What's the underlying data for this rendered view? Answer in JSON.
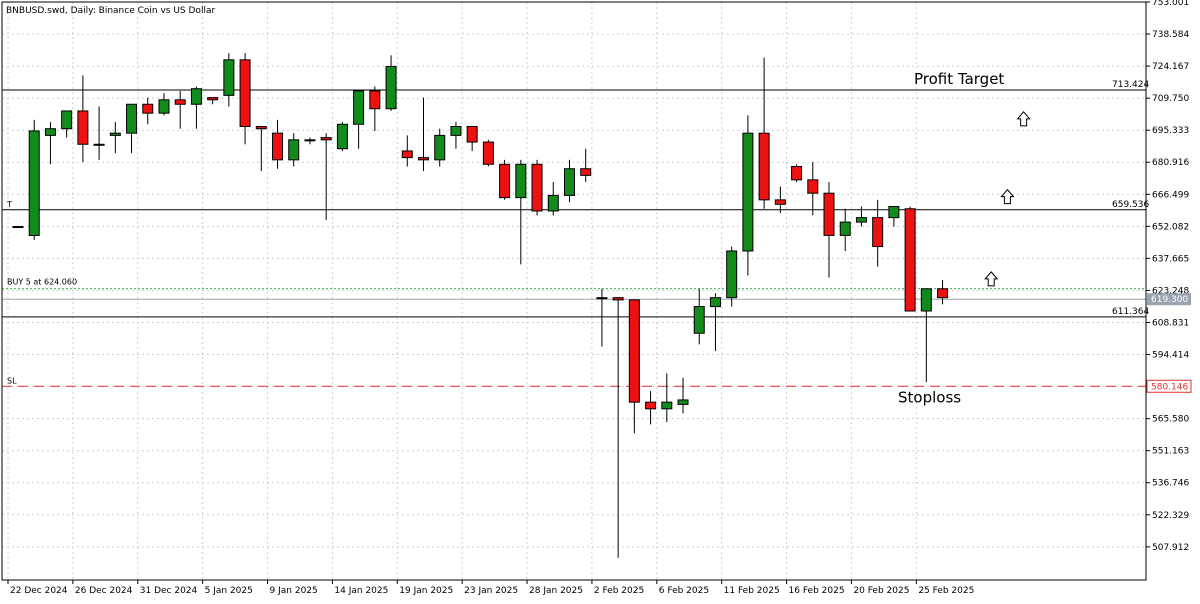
{
  "chart_data": {
    "type": "candlestick",
    "title": "BNBUSD.swd, Daily: Binance Coin vs US Dollar",
    "colors": {
      "bull": "#138a1c",
      "bear": "#ee1111",
      "wick": "#000000",
      "grid": "#c9d1db",
      "entry": "#37b24d",
      "stop": "#e03131"
    },
    "ylim": [
      493.0,
      753.0
    ],
    "y_ticks": [
      753.001,
      738.584,
      724.167,
      709.75,
      695.333,
      680.916,
      666.499,
      652.082,
      637.665,
      623.248,
      608.831,
      594.414,
      579.997,
      565.58,
      551.163,
      536.746,
      522.329,
      507.912
    ],
    "x_ticks": [
      {
        "index": 0,
        "label": "22 Dec 2024"
      },
      {
        "index": 4,
        "label": "26 Dec 2024"
      },
      {
        "index": 8,
        "label": "31 Dec 2024"
      },
      {
        "index": 12,
        "label": "5 Jan 2025"
      },
      {
        "index": 16,
        "label": "9 Jan 2025"
      },
      {
        "index": 20,
        "label": "14 Jan 2025"
      },
      {
        "index": 24,
        "label": "19 Jan 2025"
      },
      {
        "index": 28,
        "label": "23 Jan 2025"
      },
      {
        "index": 32,
        "label": "28 Jan 2025"
      },
      {
        "index": 36,
        "label": "2 Feb 2025"
      },
      {
        "index": 40,
        "label": "6 Feb 2025"
      },
      {
        "index": 44,
        "label": "11 Feb 2025"
      },
      {
        "index": 48,
        "label": "16 Feb 2025"
      },
      {
        "index": 52,
        "label": "20 Feb 2025"
      },
      {
        "index": 56,
        "label": "25 Feb 2025"
      }
    ],
    "candles": [
      {
        "o": 652.0,
        "h": 652.0,
        "l": 652.0,
        "c": 652.0
      },
      {
        "o": 648.0,
        "h": 700.0,
        "l": 646.0,
        "c": 695.0
      },
      {
        "o": 693.0,
        "h": 699.0,
        "l": 680.0,
        "c": 696.0
      },
      {
        "o": 696.0,
        "h": 703.0,
        "l": 692.0,
        "c": 704.0
      },
      {
        "o": 704.0,
        "h": 720.0,
        "l": 681.0,
        "c": 689.0
      },
      {
        "o": 689.0,
        "h": 706.0,
        "l": 682.0,
        "c": 689.0
      },
      {
        "o": 693.0,
        "h": 699.0,
        "l": 685.0,
        "c": 694.0
      },
      {
        "o": 694.0,
        "h": 706.0,
        "l": 685.0,
        "c": 707.0
      },
      {
        "o": 707.0,
        "h": 710.0,
        "l": 698.0,
        "c": 703.0
      },
      {
        "o": 703.0,
        "h": 712.0,
        "l": 702.0,
        "c": 709.0
      },
      {
        "o": 709.0,
        "h": 713.0,
        "l": 696.0,
        "c": 707.0
      },
      {
        "o": 707.0,
        "h": 715.0,
        "l": 696.0,
        "c": 714.0
      },
      {
        "o": 710.0,
        "h": 710.0,
        "l": 707.0,
        "c": 709.0
      },
      {
        "o": 711.0,
        "h": 730.0,
        "l": 706.0,
        "c": 727.0
      },
      {
        "o": 727.0,
        "h": 730.0,
        "l": 689.0,
        "c": 697.0
      },
      {
        "o": 697.0,
        "h": 697.0,
        "l": 677.0,
        "c": 696.0
      },
      {
        "o": 694.0,
        "h": 700.0,
        "l": 678.0,
        "c": 682.0
      },
      {
        "o": 682.0,
        "h": 694.0,
        "l": 679.0,
        "c": 691.0
      },
      {
        "o": 691.0,
        "h": 692.0,
        "l": 689.0,
        "c": 691.0
      },
      {
        "o": 692.0,
        "h": 694.0,
        "l": 655.0,
        "c": 691.0
      },
      {
        "o": 687.0,
        "h": 699.0,
        "l": 686.0,
        "c": 698.0
      },
      {
        "o": 698.0,
        "h": 713.0,
        "l": 687.0,
        "c": 713.0
      },
      {
        "o": 713.0,
        "h": 715.0,
        "l": 695.0,
        "c": 705.0
      },
      {
        "o": 705.0,
        "h": 729.0,
        "l": 704.0,
        "c": 724.0
      },
      {
        "o": 686.0,
        "h": 693.0,
        "l": 679.0,
        "c": 683.0
      },
      {
        "o": 683.0,
        "h": 710.0,
        "l": 677.0,
        "c": 682.0
      },
      {
        "o": 682.0,
        "h": 696.0,
        "l": 679.0,
        "c": 693.0
      },
      {
        "o": 693.0,
        "h": 699.0,
        "l": 687.0,
        "c": 697.0
      },
      {
        "o": 697.0,
        "h": 696.0,
        "l": 686.0,
        "c": 690.0
      },
      {
        "o": 690.0,
        "h": 691.0,
        "l": 679.0,
        "c": 680.0
      },
      {
        "o": 680.0,
        "h": 682.0,
        "l": 664.0,
        "c": 665.0
      },
      {
        "o": 665.0,
        "h": 682.0,
        "l": 635.0,
        "c": 680.0
      },
      {
        "o": 680.0,
        "h": 682.0,
        "l": 657.0,
        "c": 659.0
      },
      {
        "o": 659.0,
        "h": 672.0,
        "l": 657.0,
        "c": 666.0
      },
      {
        "o": 666.0,
        "h": 682.0,
        "l": 663.0,
        "c": 678.0
      },
      {
        "o": 678.0,
        "h": 687.0,
        "l": 672.0,
        "c": 675.0
      },
      {
        "o": 620.0,
        "h": 624.0,
        "l": 598.0,
        "c": 620.0
      },
      {
        "o": 620.0,
        "h": 619.0,
        "l": 503.0,
        "c": 619.0
      },
      {
        "o": 619.0,
        "h": 619.0,
        "l": 559.0,
        "c": 573.0
      },
      {
        "o": 573.0,
        "h": 578.0,
        "l": 563.0,
        "c": 570.0
      },
      {
        "o": 570.0,
        "h": 586.0,
        "l": 564.0,
        "c": 573.0
      },
      {
        "o": 572.0,
        "h": 584.0,
        "l": 568.0,
        "c": 574.0
      },
      {
        "o": 604.0,
        "h": 624.0,
        "l": 599.0,
        "c": 616.0
      },
      {
        "o": 616.0,
        "h": 622.0,
        "l": 596.0,
        "c": 620.0
      },
      {
        "o": 620.0,
        "h": 643.0,
        "l": 616.0,
        "c": 641.0
      },
      {
        "o": 641.0,
        "h": 702.0,
        "l": 630.0,
        "c": 694.0
      },
      {
        "o": 694.0,
        "h": 728.0,
        "l": 660.0,
        "c": 664.0
      },
      {
        "o": 664.0,
        "h": 670.0,
        "l": 658.0,
        "c": 662.0
      },
      {
        "o": 679.0,
        "h": 680.0,
        "l": 672.0,
        "c": 673.0
      },
      {
        "o": 673.0,
        "h": 681.0,
        "l": 657.0,
        "c": 667.0
      },
      {
        "o": 667.0,
        "h": 672.0,
        "l": 629.0,
        "c": 648.0
      },
      {
        "o": 648.0,
        "h": 660.0,
        "l": 641.0,
        "c": 654.0
      },
      {
        "o": 654.0,
        "h": 661.0,
        "l": 652.0,
        "c": 656.0
      },
      {
        "o": 656.0,
        "h": 664.0,
        "l": 634.0,
        "c": 643.0
      },
      {
        "o": 656.0,
        "h": 661.0,
        "l": 652.0,
        "c": 661.0
      },
      {
        "o": 660.0,
        "h": 661.0,
        "l": 614.0,
        "c": 614.0
      },
      {
        "o": 614.0,
        "h": 624.0,
        "l": 582.0,
        "c": 624.0
      },
      {
        "o": 624.0,
        "h": 628.0,
        "l": 617.0,
        "c": 620.0
      }
    ],
    "levels": [
      {
        "name": "profit-target",
        "price": 713.424,
        "label": "713.424",
        "style": "solid"
      },
      {
        "name": "t-line",
        "price": 659.536,
        "label": "659.536",
        "style": "solid"
      },
      {
        "name": "support",
        "price": 611.364,
        "label": "611.364",
        "style": "solid"
      },
      {
        "name": "current-price",
        "price": 619.3,
        "label": "619.300",
        "style": "solid-grey"
      },
      {
        "name": "buy-entry",
        "price": 624.06,
        "label": "",
        "style": "dotted-green"
      },
      {
        "name": "stoploss",
        "price": 580.146,
        "label": "580.146",
        "style": "dashed-red"
      }
    ],
    "annotations": {
      "profit_target": "Profit Target",
      "stoploss": "Stoploss",
      "buy_order": "BUY 5 at 624.060",
      "sl_tag": "SL",
      "t_tag": "T"
    },
    "arrows": [
      {
        "index": 62,
        "price": 700.0
      },
      {
        "index": 61,
        "price": 665.0
      },
      {
        "index": 60,
        "price": 628.0
      }
    ]
  }
}
